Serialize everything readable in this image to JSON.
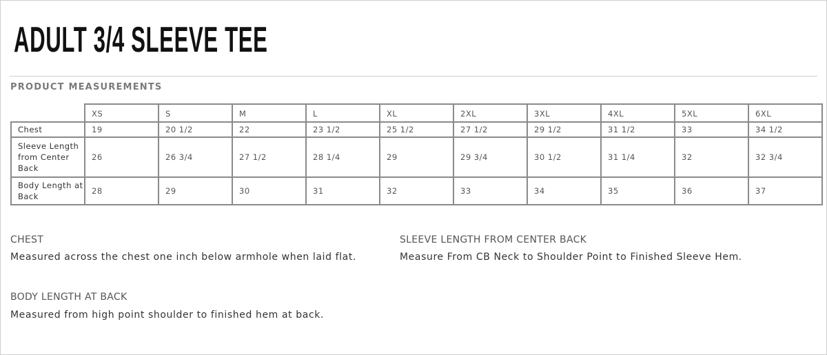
{
  "title": "ADULT 3/4 SLEEVE TEE",
  "section": "PRODUCT MEASUREMENTS",
  "sizes": [
    "XS",
    "S",
    "M",
    "L",
    "XL",
    "2XL",
    "3XL",
    "4XL",
    "5XL",
    "6XL"
  ],
  "rows": [
    {
      "label": "Chest",
      "values": [
        "19",
        "20 1/2",
        "22",
        "23 1/2",
        "25 1/2",
        "27 1/2",
        "29 1/2",
        "31 1/2",
        "33",
        "34 1/2"
      ]
    },
    {
      "label": "Sleeve Length from Center Back",
      "values": [
        "26",
        "26 3/4",
        "27 1/2",
        "28 1/4",
        "29",
        "29 3/4",
        "30 1/2",
        "31 1/4",
        "32",
        "32 3/4"
      ]
    },
    {
      "label": "Body Length at Back",
      "values": [
        "28",
        "29",
        "30",
        "31",
        "32",
        "33",
        "34",
        "35",
        "36",
        "37"
      ]
    }
  ],
  "descriptions": {
    "chest": {
      "heading": "CHEST",
      "text": "Measured across the chest one inch below armhole when laid flat."
    },
    "sleeve": {
      "heading": "SLEEVE LENGTH FROM CENTER BACK",
      "text": "Measure From CB Neck to Shoulder Point to Finished Sleeve Hem."
    },
    "body": {
      "heading": "BODY LENGTH AT BACK",
      "text": "Measured from high point shoulder to finished hem at back."
    }
  }
}
